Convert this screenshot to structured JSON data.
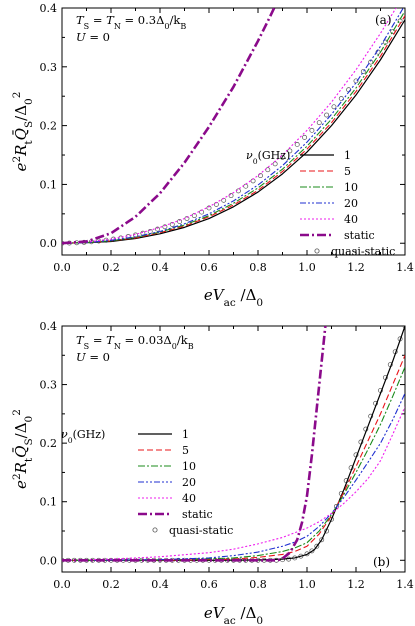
{
  "chart_data": [
    {
      "type": "line",
      "panel_label": "(a)",
      "annotation_line1": "T_S = T_N = 0.3Δ_0/k_B",
      "annotation_line2": "U = 0",
      "legend_title": "ν_0(GHz)",
      "xlabel": "eV_ac/Δ_0",
      "ylabel": "e²R_t Q̄_S/Δ_0²",
      "xlim": [
        0.0,
        1.4
      ],
      "ylim": [
        -0.02,
        0.4
      ],
      "xticks": [
        "0.0",
        "0.2",
        "0.4",
        "0.6",
        "0.8",
        "1.0",
        "1.2",
        "1.4"
      ],
      "yticks": [
        "0.0",
        "0.1",
        "0.2",
        "0.3",
        "0.4"
      ],
      "legend_position": "center-right",
      "series": [
        {
          "name": "1",
          "color": "#000000",
          "dash": "solid",
          "width": 1.2,
          "x": [
            0,
            0.1,
            0.2,
            0.3,
            0.4,
            0.5,
            0.6,
            0.7,
            0.8,
            0.9,
            1.0,
            1.1,
            1.2,
            1.3,
            1.4
          ],
          "y": [
            0,
            0.001,
            0.003,
            0.008,
            0.016,
            0.027,
            0.042,
            0.062,
            0.087,
            0.118,
            0.155,
            0.2,
            0.252,
            0.312,
            0.38
          ]
        },
        {
          "name": "5",
          "color": "#e8141a",
          "dash": "6,3",
          "width": 1.1,
          "x": [
            0,
            0.1,
            0.2,
            0.3,
            0.4,
            0.5,
            0.6,
            0.7,
            0.8,
            0.9,
            1.0,
            1.1,
            1.2,
            1.3,
            1.4
          ],
          "y": [
            0,
            0.001,
            0.004,
            0.009,
            0.018,
            0.029,
            0.045,
            0.065,
            0.09,
            0.122,
            0.16,
            0.205,
            0.258,
            0.318,
            0.387
          ]
        },
        {
          "name": "10",
          "color": "#1b8b1b",
          "dash": "7,2,2,2",
          "width": 1.1,
          "x": [
            0,
            0.1,
            0.2,
            0.3,
            0.4,
            0.5,
            0.6,
            0.7,
            0.8,
            0.9,
            1.0,
            1.1,
            1.2,
            1.3,
            1.4
          ],
          "y": [
            0,
            0.001,
            0.004,
            0.01,
            0.019,
            0.031,
            0.047,
            0.068,
            0.094,
            0.126,
            0.165,
            0.211,
            0.264,
            0.325,
            0.395
          ]
        },
        {
          "name": "20",
          "color": "#1f2fd0",
          "dash": "6,2,2,2,2,2",
          "width": 1.1,
          "x": [
            0,
            0.1,
            0.2,
            0.3,
            0.4,
            0.5,
            0.6,
            0.7,
            0.8,
            0.9,
            1.0,
            1.1,
            1.2,
            1.3,
            1.4
          ],
          "y": [
            0,
            0.001,
            0.005,
            0.011,
            0.02,
            0.033,
            0.05,
            0.072,
            0.099,
            0.132,
            0.172,
            0.219,
            0.273,
            0.335,
            0.405
          ]
        },
        {
          "name": "40",
          "color": "#ee1cee",
          "dash": "2,2",
          "width": 1.1,
          "x": [
            0,
            0.1,
            0.2,
            0.3,
            0.4,
            0.5,
            0.6,
            0.7,
            0.8,
            0.9,
            1.0,
            1.1,
            1.2,
            1.3,
            1.4
          ],
          "y": [
            0,
            0.002,
            0.007,
            0.015,
            0.027,
            0.042,
            0.062,
            0.086,
            0.115,
            0.15,
            0.192,
            0.24,
            0.295,
            0.357,
            0.425
          ]
        },
        {
          "name": "static",
          "color": "#8b0a8b",
          "dash": "9,3,2,3",
          "width": 2.6,
          "x": [
            0,
            0.1,
            0.2,
            0.3,
            0.4,
            0.5,
            0.6,
            0.7,
            0.8,
            0.85,
            0.9
          ],
          "y": [
            0,
            0.003,
            0.017,
            0.045,
            0.085,
            0.137,
            0.198,
            0.266,
            0.344,
            0.386,
            0.43
          ]
        }
      ],
      "markers_series": {
        "name": "quasi-static",
        "color": "#555555",
        "x": [
          0,
          0.03,
          0.06,
          0.09,
          0.12,
          0.15,
          0.18,
          0.21,
          0.24,
          0.27,
          0.3,
          0.33,
          0.36,
          0.39,
          0.42,
          0.45,
          0.48,
          0.51,
          0.54,
          0.57,
          0.6,
          0.63,
          0.66,
          0.69,
          0.72,
          0.75,
          0.78,
          0.81,
          0.84,
          0.87,
          0.9,
          0.93,
          0.96,
          0.99,
          1.02,
          1.05,
          1.08,
          1.11,
          1.14,
          1.17,
          1.2,
          1.23,
          1.26,
          1.29,
          1.32,
          1.35,
          1.38
        ],
        "y": [
          0,
          0.0003,
          0.0008,
          0.0015,
          0.0025,
          0.0037,
          0.0052,
          0.007,
          0.009,
          0.0115,
          0.014,
          0.017,
          0.02,
          0.024,
          0.028,
          0.032,
          0.037,
          0.042,
          0.047,
          0.053,
          0.06,
          0.066,
          0.073,
          0.081,
          0.089,
          0.097,
          0.106,
          0.115,
          0.125,
          0.135,
          0.146,
          0.157,
          0.168,
          0.18,
          0.192,
          0.205,
          0.218,
          0.232,
          0.246,
          0.261,
          0.276,
          0.292,
          0.308,
          0.325,
          0.342,
          0.36,
          0.378
        ]
      }
    },
    {
      "type": "line",
      "panel_label": "(b)",
      "annotation_line1": "T_S = T_N = 0.03Δ_0/k_B",
      "annotation_line2": "U = 0",
      "legend_title": "ν_0(GHz)",
      "xlabel": "eV_ac/Δ_0",
      "ylabel": "e²R_t Q̄_S/Δ_0²",
      "xlim": [
        0.0,
        1.4
      ],
      "ylim": [
        -0.02,
        0.4
      ],
      "xticks": [
        "0.0",
        "0.2",
        "0.4",
        "0.6",
        "0.8",
        "1.0",
        "1.2",
        "1.4"
      ],
      "yticks": [
        "0.0",
        "0.1",
        "0.2",
        "0.3",
        "0.4"
      ],
      "legend_position": "center-left",
      "series": [
        {
          "name": "1",
          "color": "#000000",
          "dash": "solid",
          "width": 1.2,
          "x": [
            0,
            0.6,
            0.8,
            0.9,
            0.95,
            1.0,
            1.03,
            1.06,
            1.1,
            1.15,
            1.2,
            1.25,
            1.3,
            1.35,
            1.4
          ],
          "y": [
            0,
            0,
            0.0005,
            0.002,
            0.004,
            0.01,
            0.018,
            0.035,
            0.07,
            0.12,
            0.175,
            0.23,
            0.285,
            0.34,
            0.4
          ]
        },
        {
          "name": "5",
          "color": "#e8141a",
          "dash": "6,3",
          "width": 1.1,
          "x": [
            0,
            0.5,
            0.7,
            0.8,
            0.9,
            0.95,
            1.0,
            1.05,
            1.1,
            1.15,
            1.2,
            1.25,
            1.3,
            1.35,
            1.4
          ],
          "y": [
            0,
            0.0005,
            0.002,
            0.005,
            0.01,
            0.015,
            0.024,
            0.045,
            0.076,
            0.116,
            0.16,
            0.205,
            0.25,
            0.3,
            0.35
          ]
        },
        {
          "name": "10",
          "color": "#1b8b1b",
          "dash": "7,2,2,2",
          "width": 1.1,
          "x": [
            0,
            0.5,
            0.7,
            0.8,
            0.9,
            0.95,
            1.0,
            1.05,
            1.1,
            1.15,
            1.2,
            1.25,
            1.3,
            1.35,
            1.4
          ],
          "y": [
            0,
            0.001,
            0.004,
            0.008,
            0.015,
            0.021,
            0.03,
            0.05,
            0.078,
            0.112,
            0.15,
            0.19,
            0.232,
            0.28,
            0.33
          ]
        },
        {
          "name": "20",
          "color": "#1f2fd0",
          "dash": "6,2,2,2,2,2",
          "width": 1.1,
          "x": [
            0,
            0.4,
            0.6,
            0.7,
            0.8,
            0.9,
            0.95,
            1.0,
            1.05,
            1.1,
            1.15,
            1.2,
            1.25,
            1.3,
            1.35,
            1.4
          ],
          "y": [
            0,
            0.001,
            0.004,
            0.008,
            0.014,
            0.024,
            0.031,
            0.041,
            0.058,
            0.08,
            0.107,
            0.137,
            0.168,
            0.2,
            0.24,
            0.285
          ]
        },
        {
          "name": "40",
          "color": "#ee1cee",
          "dash": "2,2",
          "width": 1.1,
          "x": [
            0,
            0.2,
            0.4,
            0.6,
            0.7,
            0.8,
            0.9,
            1.0,
            1.05,
            1.1,
            1.15,
            1.2,
            1.25,
            1.3,
            1.35,
            1.4
          ],
          "y": [
            0,
            0.002,
            0.006,
            0.013,
            0.019,
            0.028,
            0.039,
            0.055,
            0.066,
            0.08,
            0.097,
            0.117,
            0.14,
            0.17,
            0.215,
            0.262
          ]
        },
        {
          "name": "static",
          "color": "#8b0a8b",
          "dash": "9,3,2,3",
          "width": 2.6,
          "x": [
            0,
            0.88,
            0.9,
            0.93,
            0.96,
            0.98,
            1.0,
            1.02,
            1.04,
            1.06,
            1.08
          ],
          "y": [
            0,
            0,
            0.003,
            0.013,
            0.035,
            0.065,
            0.11,
            0.18,
            0.26,
            0.34,
            0.42
          ]
        }
      ],
      "markers_series": {
        "name": "quasi-static",
        "color": "#555555",
        "x": [
          0,
          0.025,
          0.05,
          0.075,
          0.1,
          0.125,
          0.15,
          0.175,
          0.2,
          0.225,
          0.25,
          0.275,
          0.3,
          0.325,
          0.35,
          0.375,
          0.4,
          0.425,
          0.45,
          0.475,
          0.5,
          0.525,
          0.55,
          0.575,
          0.6,
          0.625,
          0.65,
          0.675,
          0.7,
          0.725,
          0.75,
          0.775,
          0.8,
          0.825,
          0.85,
          0.875,
          0.9,
          0.925,
          0.95,
          0.975,
          1.0,
          1.02,
          1.04,
          1.06,
          1.08,
          1.1,
          1.12,
          1.14,
          1.16,
          1.18,
          1.2,
          1.22,
          1.24,
          1.26,
          1.28,
          1.3,
          1.32,
          1.34,
          1.36,
          1.38,
          1.4
        ],
        "y": [
          0,
          0,
          0,
          0,
          0,
          0,
          0,
          0,
          0,
          0,
          0,
          0,
          0,
          0,
          0,
          0,
          0,
          0,
          0,
          0,
          0,
          0,
          0,
          0,
          0,
          0,
          0,
          0,
          0,
          0,
          0,
          0,
          0,
          0,
          0,
          0,
          0.001,
          0.002,
          0.004,
          0.007,
          0.011,
          0.016,
          0.024,
          0.035,
          0.05,
          0.07,
          0.092,
          0.114,
          0.136,
          0.158,
          0.18,
          0.202,
          0.224,
          0.246,
          0.268,
          0.29,
          0.312,
          0.334,
          0.356,
          0.378,
          0.4
        ]
      }
    }
  ]
}
